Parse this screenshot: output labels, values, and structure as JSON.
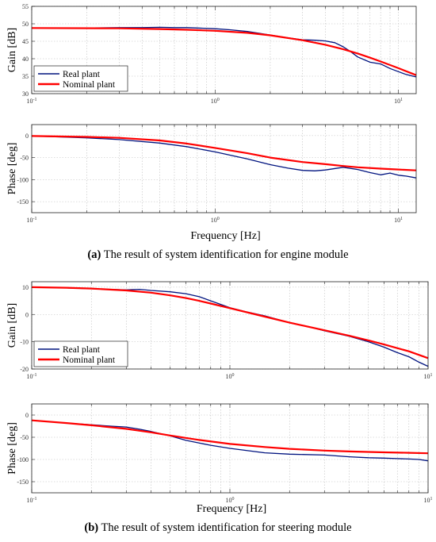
{
  "captions": {
    "a_letter": "(a)",
    "a_text": "The result of system identification for engine module",
    "b_letter": "(b)",
    "b_text": "The result of system identification for steering module"
  },
  "chart_data": [
    {
      "type": "line",
      "panel": "engine-gain",
      "ylabel": "Gain [dB]",
      "xlabel": "",
      "xscale": "log",
      "xlim": [
        0.1,
        12.5
      ],
      "ylim": [
        30,
        55
      ],
      "yticks": [
        30,
        35,
        40,
        45,
        50,
        55
      ],
      "xtick_labels": [
        "10-1",
        "100",
        "101"
      ],
      "grid": true,
      "legend": {
        "position": "bottom-left",
        "entries": [
          "Real plant",
          "Nominal plant"
        ]
      },
      "series": [
        {
          "name": "Real plant",
          "color": "#00137f",
          "x": [
            0.1,
            0.2,
            0.3,
            0.4,
            0.5,
            0.6,
            0.7,
            0.8,
            1.0,
            1.2,
            1.5,
            2.0,
            2.5,
            3.0,
            3.5,
            4.0,
            4.5,
            5.0,
            5.5,
            6.0,
            7.0,
            8.0,
            9.0,
            10.0,
            11.0,
            12.0,
            12.5
          ],
          "y": [
            48.8,
            48.8,
            48.9,
            48.9,
            49.0,
            48.9,
            48.9,
            48.8,
            48.6,
            48.3,
            47.8,
            46.8,
            46.0,
            45.4,
            45.3,
            45.1,
            44.6,
            43.4,
            42.0,
            40.5,
            39.0,
            38.5,
            37.2,
            36.3,
            35.5,
            35.0,
            34.8
          ]
        },
        {
          "name": "Nominal plant",
          "color": "#ff0000",
          "x": [
            0.1,
            0.3,
            0.5,
            0.7,
            1.0,
            1.5,
            2.0,
            3.0,
            4.0,
            5.0,
            6.0,
            7.0,
            8.0,
            10.0,
            12.5
          ],
          "y": [
            48.8,
            48.7,
            48.5,
            48.3,
            48.0,
            47.4,
            46.7,
            45.3,
            44.0,
            42.7,
            41.5,
            40.3,
            39.2,
            37.3,
            35.3
          ]
        }
      ]
    },
    {
      "type": "line",
      "panel": "engine-phase",
      "ylabel": "Phase [deg]",
      "xlabel": "Frequency [Hz]",
      "xscale": "log",
      "xlim": [
        0.1,
        12.5
      ],
      "ylim": [
        -175,
        25
      ],
      "yticks": [
        -150,
        -100,
        -50,
        0
      ],
      "xtick_labels": [
        "10-1",
        "100",
        "101"
      ],
      "grid": true,
      "series": [
        {
          "name": "Real plant",
          "color": "#00137f",
          "x": [
            0.1,
            0.2,
            0.3,
            0.5,
            0.7,
            1.0,
            1.5,
            2.0,
            2.5,
            3.0,
            3.5,
            4.0,
            5.0,
            6.0,
            7.0,
            8.0,
            9.0,
            10.0,
            11.0,
            12.5
          ],
          "y": [
            -1,
            -5,
            -9,
            -17,
            -25,
            -37,
            -53,
            -66,
            -74,
            -79,
            -80,
            -78,
            -72,
            -77,
            -84,
            -89,
            -85,
            -90,
            -92,
            -96
          ]
        },
        {
          "name": "Nominal plant",
          "color": "#ff0000",
          "x": [
            0.1,
            0.2,
            0.3,
            0.5,
            0.7,
            1.0,
            1.5,
            2.0,
            3.0,
            4.0,
            5.0,
            6.0,
            8.0,
            10.0,
            12.5
          ],
          "y": [
            -1,
            -3,
            -5,
            -11,
            -18,
            -28,
            -40,
            -50,
            -60,
            -65,
            -69,
            -72,
            -75,
            -77,
            -79
          ]
        }
      ]
    },
    {
      "type": "line",
      "panel": "steering-gain",
      "ylabel": "Gain [dB]",
      "xlabel": "",
      "xscale": "log",
      "xlim": [
        0.1,
        10
      ],
      "ylim": [
        -20,
        12
      ],
      "yticks": [
        -20,
        -10,
        0,
        10
      ],
      "xtick_labels": [
        "10-1",
        "100",
        "101"
      ],
      "grid": true,
      "legend": {
        "position": "bottom-left",
        "entries": [
          "Real plant",
          "Nominal plant"
        ]
      },
      "series": [
        {
          "name": "Real plant",
          "color": "#00137f",
          "x": [
            0.1,
            0.15,
            0.2,
            0.25,
            0.3,
            0.35,
            0.4,
            0.5,
            0.6,
            0.7,
            0.8,
            1.0,
            1.2,
            1.5,
            2.0,
            2.5,
            3.0,
            4.0,
            5.0,
            6.0,
            7.0,
            8.0,
            9.0,
            10.0
          ],
          "y": [
            10.0,
            9.7,
            9.4,
            9.2,
            9.0,
            9.2,
            8.8,
            8.3,
            7.6,
            6.5,
            5.0,
            2.5,
            1.0,
            -0.5,
            -3.0,
            -4.5,
            -6.0,
            -8.0,
            -10.0,
            -12.0,
            -14.0,
            -15.5,
            -17.5,
            -19.0
          ]
        },
        {
          "name": "Nominal plant",
          "color": "#ff0000",
          "x": [
            0.1,
            0.15,
            0.2,
            0.3,
            0.4,
            0.5,
            0.6,
            0.7,
            0.8,
            1.0,
            1.5,
            2.0,
            3.0,
            4.0,
            5.0,
            6.0,
            8.0,
            10.0
          ],
          "y": [
            10.0,
            9.8,
            9.5,
            8.8,
            8.0,
            7.0,
            6.0,
            5.0,
            4.0,
            2.3,
            -0.8,
            -3.0,
            -5.8,
            -7.8,
            -9.5,
            -11.0,
            -13.5,
            -16.0
          ]
        }
      ]
    },
    {
      "type": "line",
      "panel": "steering-phase",
      "ylabel": "Phase [deg]",
      "xlabel": "Frequency [Hz]",
      "xscale": "log",
      "xlim": [
        0.1,
        10
      ],
      "ylim": [
        -175,
        25
      ],
      "yticks": [
        -150,
        -100,
        -50,
        0
      ],
      "xtick_labels": [
        "10-1",
        "100",
        "101"
      ],
      "grid": true,
      "series": [
        {
          "name": "Real plant",
          "color": "#00137f",
          "x": [
            0.1,
            0.15,
            0.2,
            0.25,
            0.3,
            0.35,
            0.4,
            0.5,
            0.6,
            0.7,
            0.8,
            1.0,
            1.5,
            2.0,
            3.0,
            4.0,
            5.0,
            6.0,
            7.0,
            8.0,
            9.0,
            10.0
          ],
          "y": [
            -12,
            -18,
            -22,
            -25,
            -27,
            -32,
            -37,
            -47,
            -57,
            -63,
            -68,
            -75,
            -85,
            -88,
            -90,
            -94,
            -96,
            -97,
            -98,
            -99,
            -100,
            -103
          ]
        },
        {
          "name": "Nominal plant",
          "color": "#ff0000",
          "x": [
            0.1,
            0.15,
            0.2,
            0.3,
            0.4,
            0.5,
            0.7,
            1.0,
            1.5,
            2.0,
            3.0,
            4.0,
            5.0,
            6.0,
            8.0,
            10.0
          ],
          "y": [
            -12,
            -18,
            -23,
            -31,
            -39,
            -46,
            -56,
            -65,
            -72,
            -76,
            -80,
            -82,
            -83,
            -84,
            -85,
            -86
          ]
        }
      ]
    }
  ]
}
